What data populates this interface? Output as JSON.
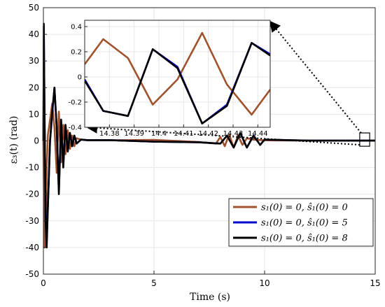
{
  "chart_data": [
    {
      "type": "line",
      "role": "main",
      "xlabel": "Time (s)",
      "ylabel": "ε₃(t) (rad)",
      "xlim": [
        0,
        15
      ],
      "ylim": [
        -50,
        50
      ],
      "xticks": [
        0,
        5,
        10,
        15
      ],
      "yticks": [
        -50,
        -40,
        -30,
        -20,
        -10,
        0,
        10,
        20,
        30,
        40,
        50
      ],
      "grid": true,
      "legend_position": "bottom-right",
      "series": [
        {
          "name": "s₁(0) = 0, ŝ₁(0) = 0",
          "color": "#a0522d",
          "x": [
            0,
            0.05,
            0.1,
            0.15,
            0.2,
            0.3,
            0.4,
            0.5,
            0.6,
            0.7,
            0.8,
            0.9,
            1.0,
            1.1,
            1.2,
            1.3,
            1.4,
            1.5,
            1.7,
            2.0,
            3.0,
            5.0,
            7.0,
            7.8,
            8.0,
            8.2,
            8.4,
            8.6,
            8.8,
            9.0,
            9.2,
            9.5,
            10.0,
            12.0,
            14.0,
            15.0
          ],
          "y": [
            0,
            -40,
            -39,
            -10,
            2,
            8,
            14,
            5,
            -12,
            11,
            -8,
            6,
            -5,
            4,
            -3,
            2,
            -2,
            1,
            0.5,
            0.2,
            0.2,
            0.4,
            -0.4,
            -1,
            1.5,
            -2,
            2.5,
            -2.5,
            2,
            -1.5,
            1,
            0.5,
            0.2,
            0.1,
            0.1,
            0.1
          ]
        },
        {
          "name": "s₁(0) = 0, ŝ₁(0) = 5",
          "color": "#0000cc",
          "x": [
            0,
            0.02,
            0.05,
            0.1,
            0.15,
            0.2,
            0.3,
            0.4,
            0.5,
            0.6,
            0.7,
            0.8,
            0.9,
            1.0,
            1.1,
            1.2,
            1.3,
            1.4,
            1.5,
            1.7,
            2.0,
            3.0,
            5.0,
            7.0,
            8.0,
            8.3,
            8.6,
            8.9,
            9.2,
            9.5,
            9.8,
            10.0,
            12.0,
            14.0,
            15.0
          ],
          "y": [
            0,
            43,
            10,
            -30,
            -38,
            -25,
            0,
            10,
            20,
            5,
            -19,
            8,
            -9,
            6,
            -4,
            3,
            -2,
            2,
            -1,
            0.5,
            0.3,
            0.3,
            -0.3,
            -0.5,
            -1,
            2,
            -2.5,
            3,
            -2.5,
            2,
            -1.5,
            0.5,
            0.1,
            0.1,
            0.1
          ]
        },
        {
          "name": "s₁(0) = 0, ŝ₁(0) = 8",
          "color": "#000000",
          "x": [
            0,
            0.02,
            0.05,
            0.1,
            0.15,
            0.2,
            0.3,
            0.4,
            0.5,
            0.6,
            0.7,
            0.8,
            0.9,
            1.0,
            1.1,
            1.2,
            1.3,
            1.4,
            1.5,
            1.7,
            2.0,
            3.0,
            5.0,
            7.0,
            8.0,
            8.3,
            8.6,
            8.9,
            9.2,
            9.5,
            9.8,
            10.0,
            12.0,
            14.0,
            15.0
          ],
          "y": [
            0,
            44,
            12,
            -30,
            -40,
            -26,
            0,
            11,
            20,
            5,
            -20,
            8,
            -10,
            6,
            -4,
            3,
            -2,
            2,
            -1,
            0.5,
            0.3,
            0.3,
            -0.3,
            -0.5,
            -1,
            2,
            -2.5,
            3,
            -2.5,
            2,
            -1.5,
            0.5,
            0.1,
            0.1,
            0.1
          ]
        }
      ]
    },
    {
      "type": "line",
      "role": "inset",
      "xlim": [
        14.37,
        14.445
      ],
      "ylim": [
        -0.4,
        0.45
      ],
      "xticks": [
        14.38,
        14.39,
        14.4,
        14.41,
        14.42,
        14.43,
        14.44
      ],
      "xtick_labels": [
        "14.38",
        "14.39",
        "14.4",
        "14.41",
        "14.42",
        "14.43",
        "14.44"
      ],
      "yticks": [
        -0.4,
        -0.2,
        0,
        0.2,
        0.4
      ],
      "ytick_labels": [
        "-0.4",
        "-0.2",
        "0",
        "0.2",
        "0.4"
      ],
      "grid": true,
      "series": [
        {
          "name": "s₁(0) = 0, ŝ₁(0) = 0",
          "color": "#a0522d",
          "x": [
            14.37,
            14.3775,
            14.3875,
            14.3975,
            14.4075,
            14.4175,
            14.4275,
            14.4375,
            14.445
          ],
          "y": [
            0.1,
            0.3,
            0.15,
            -0.22,
            -0.02,
            0.35,
            -0.06,
            -0.3,
            -0.1
          ]
        },
        {
          "name": "s₁(0) = 0, ŝ₁(0) = 5",
          "color": "#0000cc",
          "x": [
            14.37,
            14.3775,
            14.3875,
            14.3975,
            14.4075,
            14.4175,
            14.4275,
            14.4375,
            14.445
          ],
          "y": [
            -0.02,
            -0.27,
            -0.31,
            0.22,
            0.08,
            -0.37,
            -0.22,
            0.27,
            0.18
          ]
        },
        {
          "name": "s₁(0) = 0, ŝ₁(0) = 8",
          "color": "#000000",
          "x": [
            14.37,
            14.3775,
            14.3875,
            14.3975,
            14.4075,
            14.4175,
            14.4275,
            14.4375,
            14.445
          ],
          "y": [
            -0.03,
            -0.27,
            -0.31,
            0.22,
            0.07,
            -0.37,
            -0.23,
            0.27,
            0.17
          ]
        }
      ]
    }
  ],
  "legend": {
    "items": [
      {
        "label": "s₁(0) = 0, ŝ₁(0) = 0",
        "color": "#a0522d"
      },
      {
        "label": "s₁(0) = 0, ŝ₁(0) = 5",
        "color": "#0000cc"
      },
      {
        "label": "s₁(0) = 0, ŝ₁(0) = 8",
        "color": "#000000"
      }
    ]
  }
}
